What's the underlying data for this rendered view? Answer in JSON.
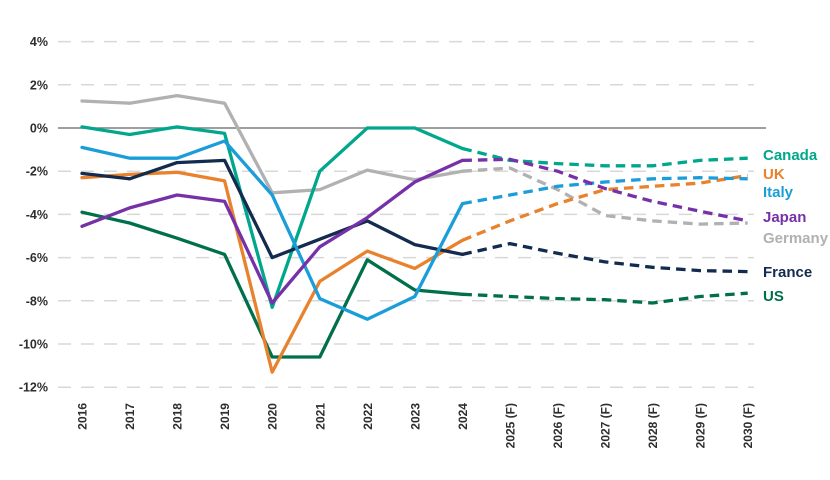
{
  "chart_data": {
    "type": "line",
    "title": "",
    "xlabel": "",
    "ylabel": "",
    "unit": "%",
    "grid": "horizontal-dashed",
    "legend_position": "right",
    "x_categories": [
      "2016",
      "2017",
      "2018",
      "2019",
      "2020",
      "2021",
      "2022",
      "2023",
      "2024",
      "2025 (F)",
      "2026 (F)",
      "2027 (F)",
      "2028 (F)",
      "2029 (F)",
      "2030 (F)"
    ],
    "forecast_start_index": 8,
    "y_ticks": [
      {
        "value": 4,
        "label": "4%"
      },
      {
        "value": 2,
        "label": "2%"
      },
      {
        "value": 0,
        "label": "0%"
      },
      {
        "value": -2,
        "label": "-2%"
      },
      {
        "value": -4,
        "label": "-4%"
      },
      {
        "value": -6,
        "label": "-6%"
      },
      {
        "value": -8,
        "label": "-8%"
      },
      {
        "value": -10,
        "label": "-10%"
      },
      {
        "value": -12,
        "label": "-12%"
      }
    ],
    "ylim": [
      -12.8,
      4.8
    ],
    "series": [
      {
        "name": "Canada",
        "color": "#00A78C",
        "values": [
          0.05,
          -0.3,
          0.05,
          -0.25,
          -8.3,
          -2.0,
          0.0,
          0.0,
          -0.95,
          -1.5,
          -1.65,
          -1.75,
          -1.75,
          -1.5,
          -1.4
        ]
      },
      {
        "name": "UK",
        "color": "#E8822C",
        "values": [
          -2.3,
          -2.15,
          -2.05,
          -2.45,
          -11.3,
          -7.1,
          -5.7,
          -6.5,
          -5.2,
          -4.3,
          -3.5,
          -2.85,
          -2.7,
          -2.55,
          -2.2
        ]
      },
      {
        "name": "Italy",
        "color": "#1B9DD9",
        "values": [
          -0.9,
          -1.4,
          -1.4,
          -0.6,
          -3.1,
          -7.9,
          -8.85,
          -7.8,
          -3.5,
          -3.1,
          -2.7,
          -2.5,
          -2.35,
          -2.3,
          -2.35
        ]
      },
      {
        "name": "Japan",
        "color": "#7630A8",
        "values": [
          -4.55,
          -3.7,
          -3.1,
          -3.4,
          -8.1,
          -5.5,
          -4.15,
          -2.5,
          -1.5,
          -1.45,
          -2.0,
          -2.8,
          -3.4,
          -3.85,
          -4.3
        ]
      },
      {
        "name": "Germany",
        "color": "#B1B1B2",
        "values": [
          1.25,
          1.15,
          1.5,
          1.15,
          -3.0,
          -2.85,
          -1.95,
          -2.4,
          -2.0,
          -1.85,
          -2.85,
          -4.05,
          -4.3,
          -4.45,
          -4.4
        ]
      },
      {
        "name": "France",
        "color": "#122B4F",
        "values": [
          -2.1,
          -2.35,
          -1.6,
          -1.5,
          -6.0,
          -5.15,
          -4.3,
          -5.4,
          -5.85,
          -5.35,
          -5.8,
          -6.2,
          -6.45,
          -6.6,
          -6.65
        ]
      },
      {
        "name": "US",
        "color": "#006F4B",
        "values": [
          -3.9,
          -4.4,
          -5.1,
          -5.85,
          -10.6,
          -10.6,
          -6.1,
          -7.5,
          -7.7,
          -7.8,
          -7.9,
          -7.95,
          -8.1,
          -7.8,
          -7.65
        ]
      }
    ],
    "legend_order": [
      "Canada",
      "UK",
      "Italy",
      "Japan",
      "Germany",
      "France",
      "US"
    ],
    "z_order": [
      "Germany",
      "US",
      "Canada",
      "UK",
      "France",
      "Italy",
      "Japan"
    ]
  }
}
